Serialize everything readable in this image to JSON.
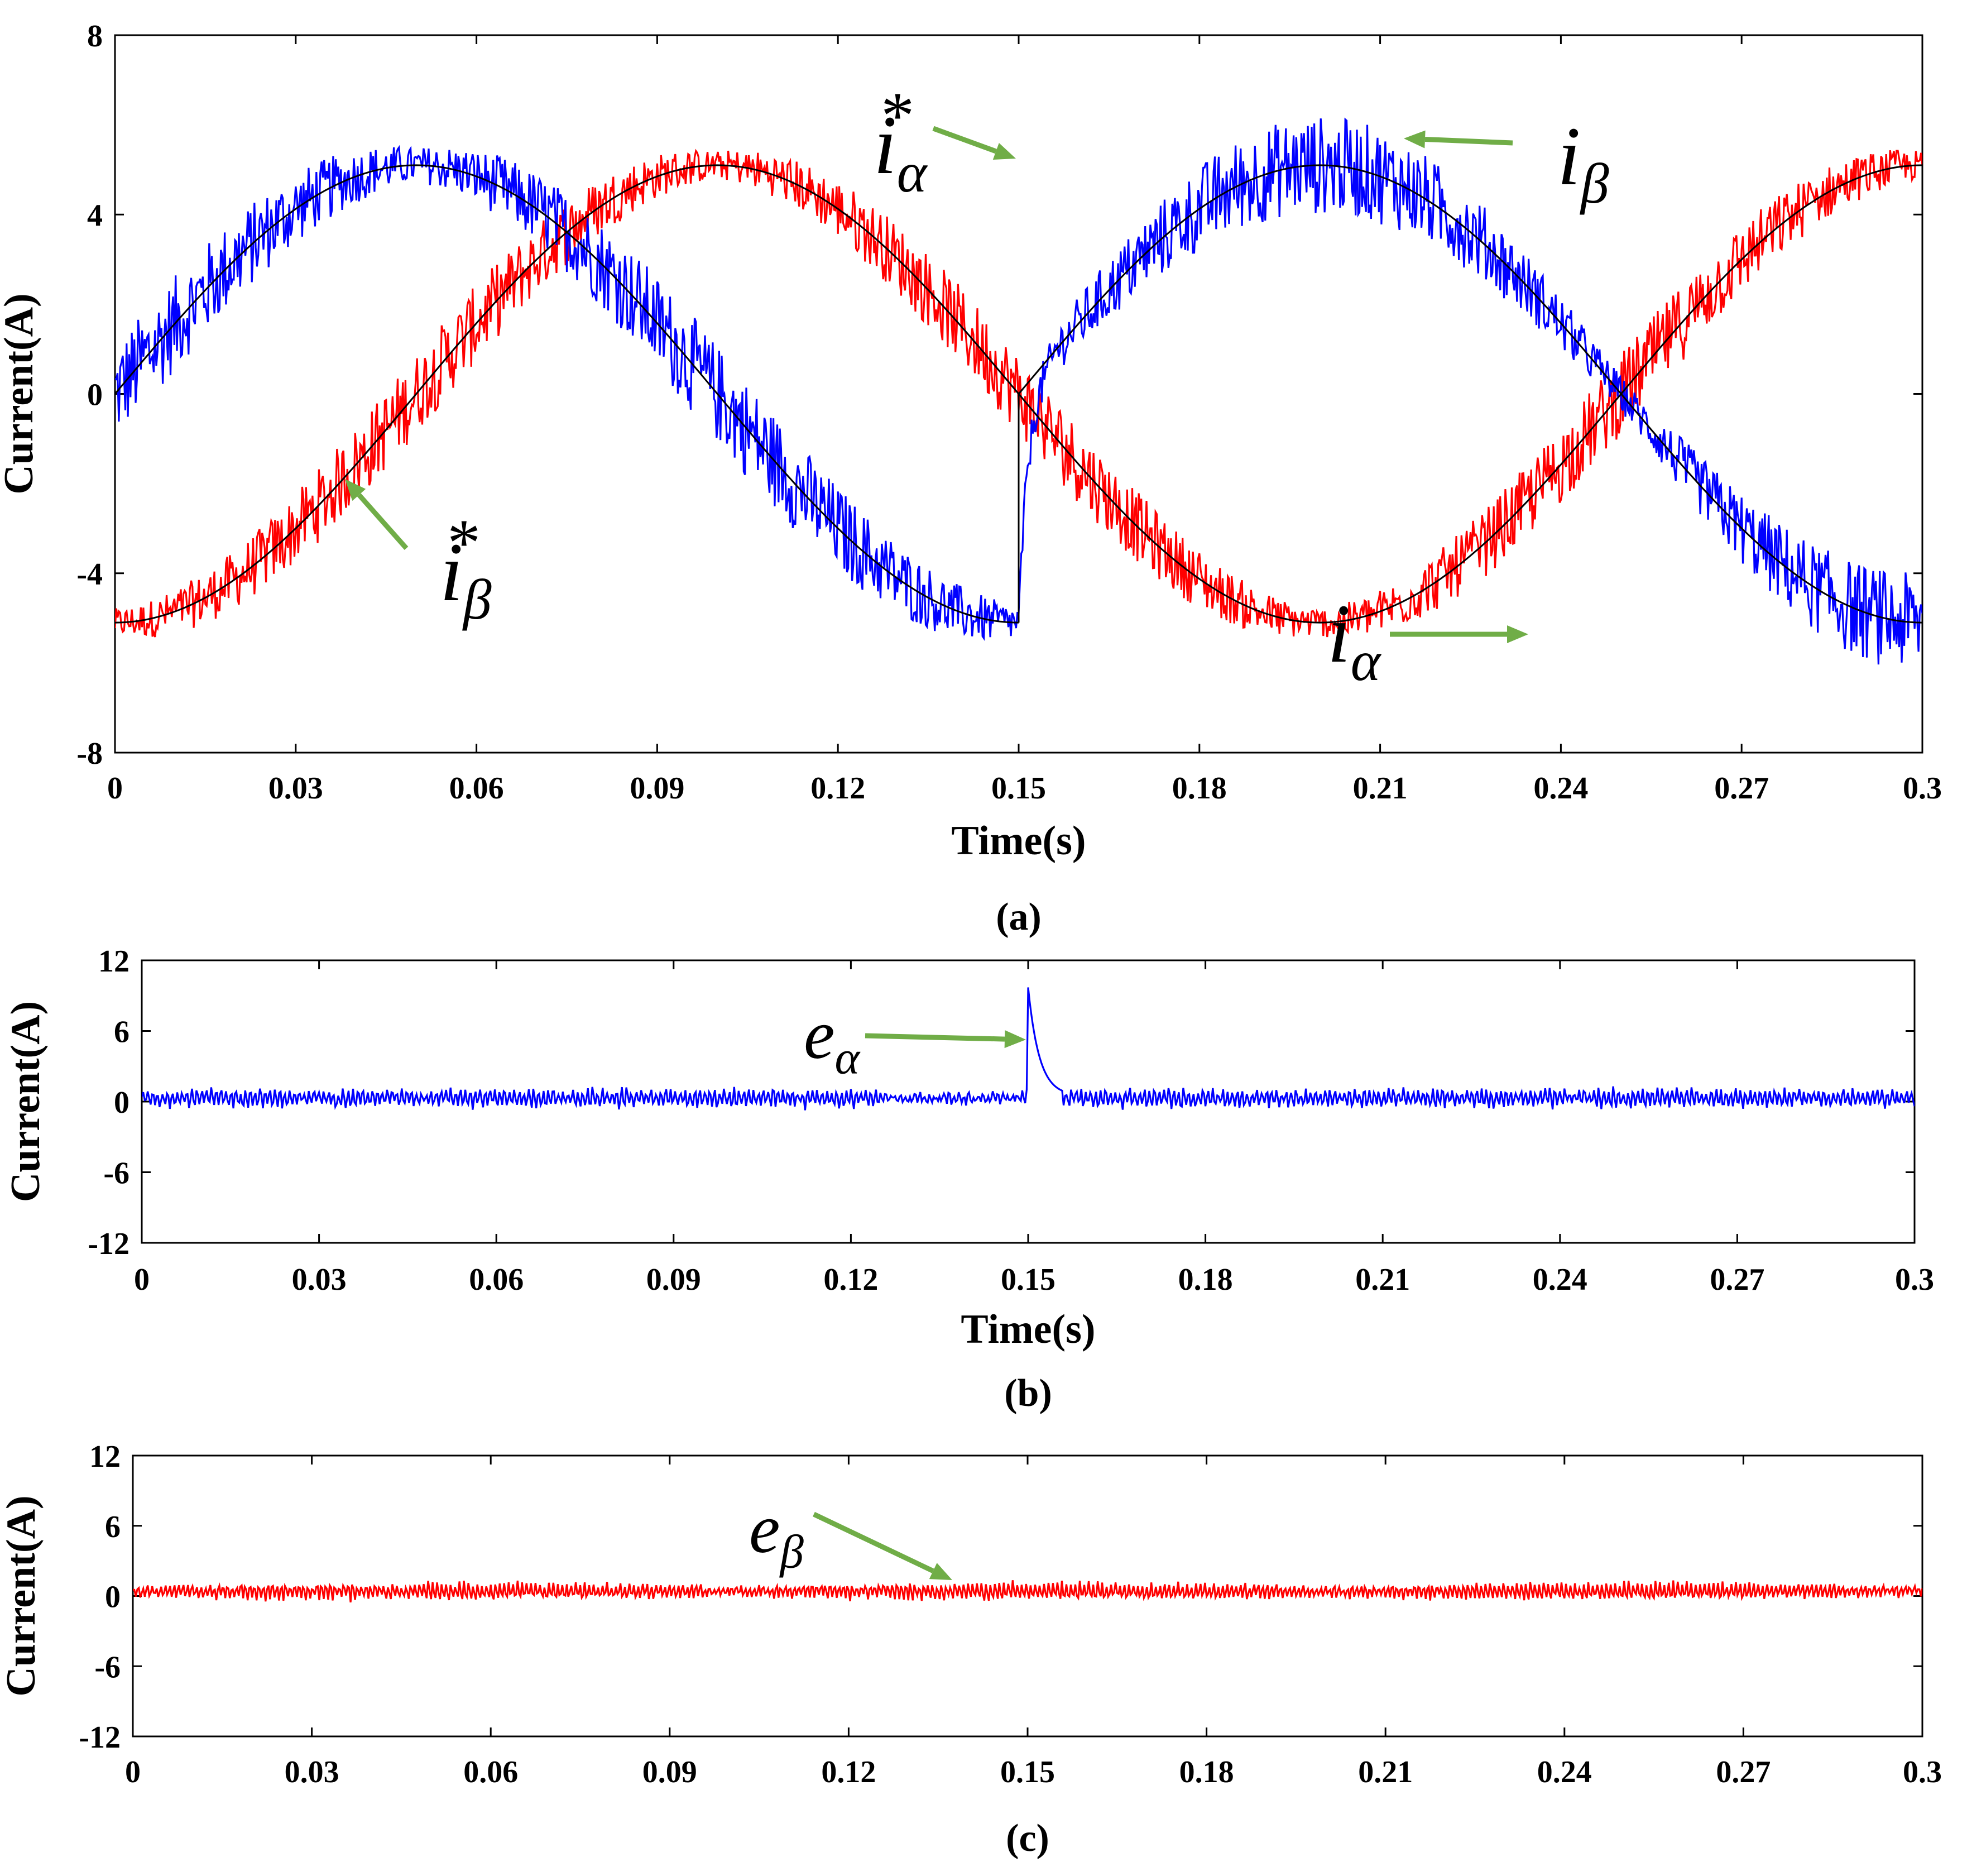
{
  "colors": {
    "blue": "#0000ff",
    "red": "#ff0000",
    "black": "#000000",
    "arrow": "#70ad47"
  },
  "chart_data": [
    {
      "id": "a",
      "type": "line",
      "caption": "(a)",
      "xlabel": "Time(s)",
      "ylabel": "Current(A)",
      "xlim": [
        0,
        0.3
      ],
      "ylim": [
        -8,
        8
      ],
      "x_ticks": [
        "0",
        "0.03",
        "0.06",
        "0.09",
        "0.12",
        "0.15",
        "0.18",
        "0.21",
        "0.24",
        "0.27",
        "0.3"
      ],
      "y_ticks": [
        "-8",
        "-4",
        "0",
        "4",
        "8"
      ],
      "series": [
        {
          "name": "i_alpha",
          "color": "blue",
          "amplitude": 5.1,
          "frequency_hz": 5,
          "phase": "sin",
          "phase_reset_at": 0.15,
          "ripple": 1.1
        },
        {
          "name": "i_beta",
          "color": "red",
          "amplitude": 5.1,
          "frequency_hz": 5,
          "phase": "-cos",
          "ripple": 0.9
        },
        {
          "name": "i_alpha_ref",
          "color": "black",
          "amplitude": 5.1,
          "frequency_hz": 5,
          "phase": "sin",
          "phase_reset_at": 0.15
        },
        {
          "name": "i_beta_ref",
          "color": "black",
          "amplitude": 5.1,
          "frequency_hz": 5,
          "phase": "-cos"
        }
      ],
      "annotations": [
        {
          "id": "i_alpha_star",
          "base": "i",
          "sub": "α",
          "sup": "*"
        },
        {
          "id": "i_beta",
          "base": "i",
          "sub": "β",
          "sup": ""
        },
        {
          "id": "i_beta_star",
          "base": "i",
          "sub": "β",
          "sup": "*"
        },
        {
          "id": "i_alpha",
          "base": "i",
          "sub": "α",
          "sup": ""
        }
      ]
    },
    {
      "id": "b",
      "type": "line",
      "caption": "(b)",
      "xlabel": "Time(s)",
      "ylabel": "Current(A)",
      "xlim": [
        0,
        0.3
      ],
      "ylim": [
        -12,
        12
      ],
      "x_ticks": [
        "0",
        "0.03",
        "0.06",
        "0.09",
        "0.12",
        "0.15",
        "0.18",
        "0.21",
        "0.24",
        "0.27",
        "0.3"
      ],
      "y_ticks": [
        "-12",
        "-6",
        "0",
        "6",
        "12"
      ],
      "series": [
        {
          "name": "e_alpha",
          "color": "blue",
          "baseline": 0.3,
          "ripple": 0.7,
          "spike_at": 0.15,
          "spike_peak": 9.2
        }
      ],
      "annotations": [
        {
          "id": "e_alpha",
          "base": "e",
          "sub": "α",
          "sup": ""
        }
      ]
    },
    {
      "id": "c",
      "type": "line",
      "caption": "(c)",
      "xlabel": "",
      "ylabel": "Current(A)",
      "xlim": [
        0,
        0.3
      ],
      "ylim": [
        -12,
        12
      ],
      "x_ticks": [
        "0",
        "0.03",
        "0.06",
        "0.09",
        "0.12",
        "0.15",
        "0.18",
        "0.21",
        "0.24",
        "0.27",
        "0.3"
      ],
      "y_ticks": [
        "-12",
        "-6",
        "0",
        "6",
        "12"
      ],
      "series": [
        {
          "name": "e_beta",
          "color": "red",
          "baseline": 0.4,
          "ripple": 0.7
        }
      ],
      "annotations": [
        {
          "id": "e_beta",
          "base": "e",
          "sub": "β",
          "sup": ""
        }
      ]
    }
  ]
}
